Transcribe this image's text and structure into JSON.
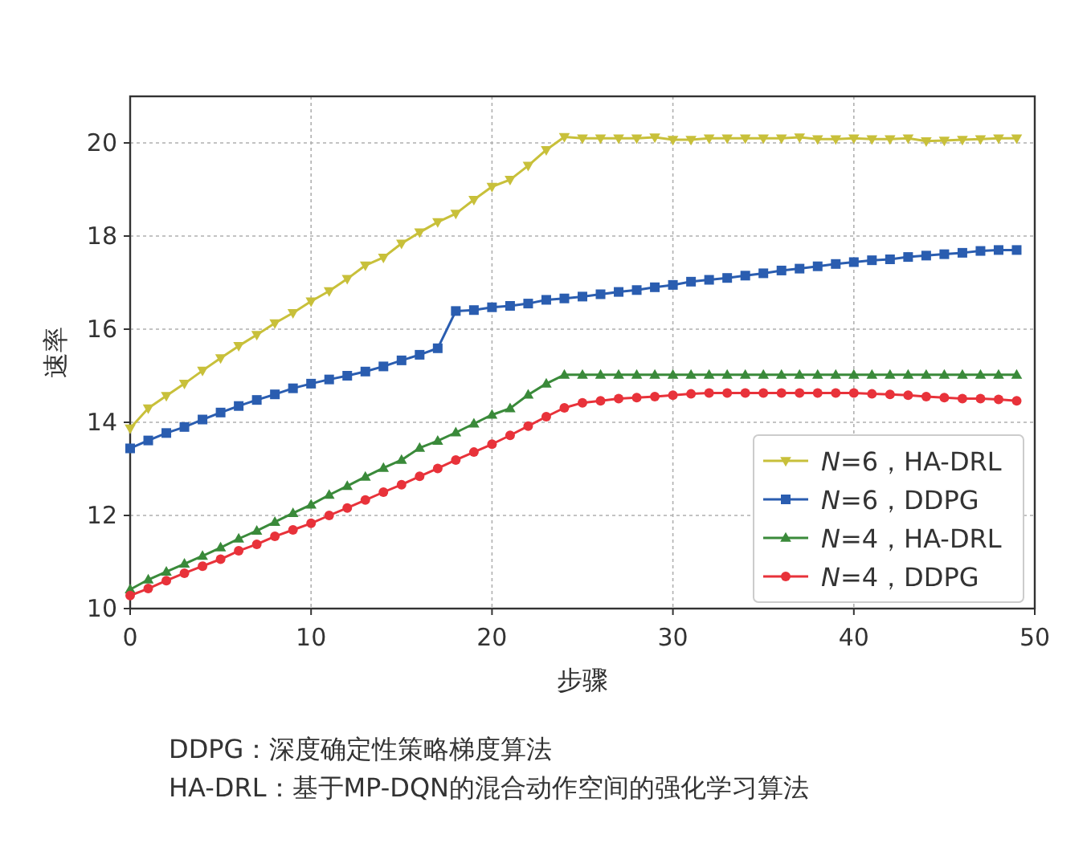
{
  "chart_data": {
    "type": "line",
    "xlabel": "步骤",
    "ylabel": "速率",
    "annotations": [
      "DDPG：深度确定性策略梯度算法",
      "HA-DRL：基于MP-DQN的混合动作空间的强化学习算法"
    ],
    "x": [
      0,
      1,
      2,
      3,
      4,
      5,
      6,
      7,
      8,
      9,
      10,
      11,
      12,
      13,
      14,
      15,
      16,
      17,
      18,
      19,
      20,
      21,
      22,
      23,
      24,
      25,
      26,
      27,
      28,
      29,
      30,
      31,
      32,
      33,
      34,
      35,
      36,
      37,
      38,
      39,
      40,
      41,
      42,
      43,
      44,
      45,
      46,
      47,
      48,
      49
    ],
    "xlim": [
      0,
      50
    ],
    "xticks": [
      0,
      10,
      20,
      30,
      40,
      50
    ],
    "ylim": [
      10,
      21
    ],
    "yticks": [
      10,
      12,
      14,
      16,
      18,
      20
    ],
    "grid": true,
    "legend": "bottom right",
    "series": [
      {
        "name": "*N*=6，HA-DRL",
        "color": "#c8c03a",
        "marker": "triangle_down",
        "values": [
          13.87,
          14.3,
          14.57,
          14.83,
          15.11,
          15.38,
          15.64,
          15.88,
          16.13,
          16.35,
          16.6,
          16.82,
          17.08,
          17.37,
          17.54,
          17.84,
          18.08,
          18.3,
          18.48,
          18.78,
          19.06,
          19.21,
          19.51,
          19.85,
          20.13,
          20.1,
          20.1,
          20.1,
          20.1,
          20.12,
          20.07,
          20.07,
          20.1,
          20.1,
          20.1,
          20.1,
          20.1,
          20.12,
          20.08,
          20.08,
          20.1,
          20.08,
          20.08,
          20.1,
          20.04,
          20.05,
          20.07,
          20.08,
          20.1,
          20.1
        ]
      },
      {
        "name": "*N*=6，DDPG",
        "color": "#2a5db0",
        "marker": "square",
        "values": [
          13.44,
          13.61,
          13.77,
          13.9,
          14.06,
          14.21,
          14.35,
          14.48,
          14.6,
          14.73,
          14.83,
          14.92,
          15.0,
          15.09,
          15.2,
          15.33,
          15.45,
          15.59,
          16.39,
          16.41,
          16.47,
          16.5,
          16.55,
          16.63,
          16.66,
          16.7,
          16.75,
          16.8,
          16.84,
          16.9,
          16.95,
          17.02,
          17.06,
          17.1,
          17.15,
          17.2,
          17.26,
          17.3,
          17.35,
          17.4,
          17.44,
          17.48,
          17.5,
          17.55,
          17.58,
          17.61,
          17.64,
          17.68,
          17.7,
          17.7
        ]
      },
      {
        "name": "*N*=4，HA-DRL",
        "color": "#3a8a3a",
        "marker": "triangle",
        "values": [
          10.41,
          10.62,
          10.79,
          10.96,
          11.13,
          11.31,
          11.5,
          11.67,
          11.86,
          12.05,
          12.23,
          12.44,
          12.63,
          12.83,
          13.02,
          13.19,
          13.45,
          13.6,
          13.78,
          13.97,
          14.16,
          14.3,
          14.59,
          14.83,
          15.02,
          15.02,
          15.02,
          15.02,
          15.02,
          15.02,
          15.02,
          15.02,
          15.02,
          15.02,
          15.02,
          15.02,
          15.02,
          15.02,
          15.02,
          15.02,
          15.02,
          15.02,
          15.02,
          15.02,
          15.02,
          15.02,
          15.02,
          15.02,
          15.02,
          15.02
        ]
      },
      {
        "name": "*N*=4，DDPG",
        "color": "#e8323a",
        "marker": "circle",
        "values": [
          10.28,
          10.43,
          10.6,
          10.76,
          10.91,
          11.06,
          11.24,
          11.38,
          11.55,
          11.69,
          11.83,
          12.0,
          12.16,
          12.33,
          12.5,
          12.66,
          12.84,
          13.01,
          13.19,
          13.36,
          13.53,
          13.72,
          13.92,
          14.12,
          14.31,
          14.42,
          14.46,
          14.51,
          14.53,
          14.55,
          14.58,
          14.61,
          14.63,
          14.63,
          14.63,
          14.63,
          14.63,
          14.63,
          14.63,
          14.63,
          14.63,
          14.61,
          14.6,
          14.58,
          14.55,
          14.53,
          14.51,
          14.51,
          14.49,
          14.46
        ]
      }
    ]
  }
}
